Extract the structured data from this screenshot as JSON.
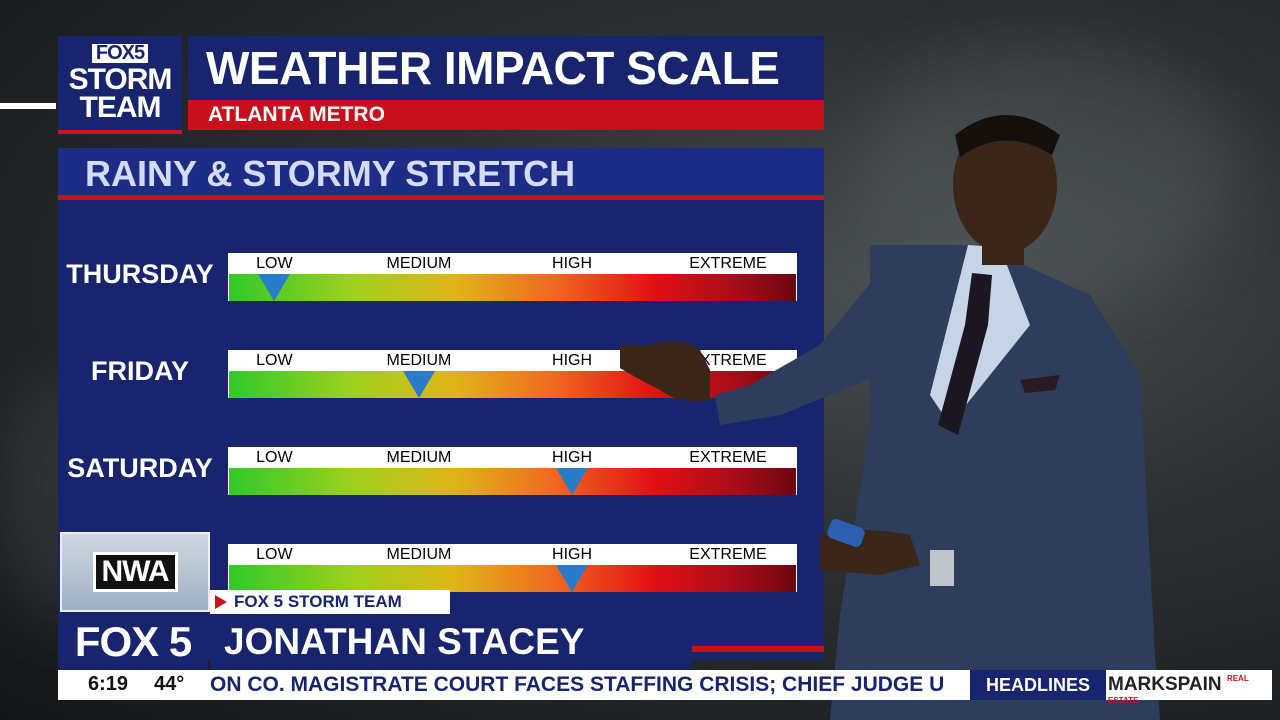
{
  "header": {
    "logo_fox5": "FOX5",
    "logo_storm": "STORM",
    "logo_team": "TEAM",
    "title": "WEATHER IMPACT SCALE",
    "subtitle": "ATLANTA METRO"
  },
  "section": {
    "title": "RAINY & STORMY STRETCH"
  },
  "scale_labels": [
    "LOW",
    "MEDIUM",
    "HIGH",
    "EXTREME"
  ],
  "rows": [
    {
      "day": "THURSDAY",
      "level": "LOW"
    },
    {
      "day": "FRIDAY",
      "level": "MEDIUM"
    },
    {
      "day": "SATURDAY",
      "level": "HIGH"
    },
    {
      "day": "",
      "level": "HIGH"
    }
  ],
  "lower_third": {
    "nwa": "NWA",
    "team_tag": "FOX 5 STORM TEAM",
    "station": "FOX 5",
    "name": "JONATHAN STACEY"
  },
  "ticker": {
    "time": "6:19",
    "temp": "44°",
    "text": "ON CO. MAGISTRATE COURT FACES STAFFING CRISIS; CHIEF JUDGE U",
    "section": "HEADLINES",
    "sponsor": "MARKSPAIN",
    "sponsor_sub": "REAL ESTATE"
  },
  "colors": {
    "navy": "#18246e",
    "red": "#c8101c",
    "marker": "#2a7cc8"
  }
}
